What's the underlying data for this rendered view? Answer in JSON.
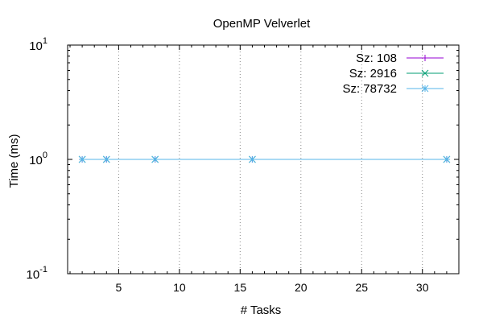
{
  "chart_data": {
    "type": "line",
    "title": "OpenMP Velverlet",
    "xlabel": "# Tasks",
    "ylabel": "Time (ms)",
    "xlim": [
      0.8,
      33.0
    ],
    "ylim": [
      0.1,
      10
    ],
    "yscale": "log",
    "grid": "vertical, dotted",
    "legend": "top-right",
    "x_ticks": [
      5,
      10,
      15,
      20,
      25,
      30
    ],
    "y_ticks": [
      {
        "value": 0.1,
        "base": "10",
        "exp": "-1"
      },
      {
        "value": 1,
        "base": "10",
        "exp": "0"
      },
      {
        "value": 10,
        "base": "10",
        "exp": "1"
      }
    ],
    "series": [
      {
        "name": "Sz: 108",
        "color": "#9400d3",
        "marker": "plus",
        "x": [
          2,
          4,
          8,
          16,
          32
        ],
        "y": [
          1,
          1,
          1,
          1,
          1
        ]
      },
      {
        "name": "Sz: 2916",
        "color": "#009e73",
        "marker": "cross",
        "x": [
          2,
          4,
          8,
          16,
          32
        ],
        "y": [
          1,
          1,
          1,
          1,
          1
        ]
      },
      {
        "name": "Sz: 78732",
        "color": "#56b4e9",
        "marker": "star",
        "x": [
          2,
          4,
          8,
          16,
          32
        ],
        "y": [
          1,
          1,
          1,
          1,
          1
        ]
      }
    ]
  }
}
